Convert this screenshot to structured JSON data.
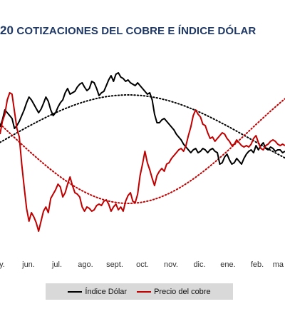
{
  "title_number": "20",
  "title_text": "COTIZACIONES DEL COBRE E ÍNDICE DÓLAR",
  "chart_data": {
    "type": "line",
    "title": "COTIZACIONES DEL COBRE E ÍNDICE DÓLAR",
    "x_tick_labels": [
      "y.",
      "jun.",
      "jul.",
      "ago.",
      "sept.",
      "oct.",
      "nov.",
      "dic.",
      "ene.",
      "feb.",
      "ma"
    ],
    "grid": false,
    "legend_position": "bottom",
    "colors": {
      "dolar": "#000000",
      "cobre": "#c00000"
    },
    "series": [
      {
        "name": "Índice Dólar",
        "color": "#000000",
        "values": [
          0.22,
          0.32,
          0.46,
          0.42,
          0.38,
          0.34,
          0.2,
          0.24,
          0.3,
          0.38,
          0.46,
          0.56,
          0.64,
          0.6,
          0.54,
          0.48,
          0.42,
          0.47,
          0.55,
          0.64,
          0.58,
          0.46,
          0.38,
          0.42,
          0.5,
          0.56,
          0.6,
          0.7,
          0.76,
          0.68,
          0.7,
          0.72,
          0.78,
          0.82,
          0.84,
          0.78,
          0.73,
          0.76,
          0.86,
          0.84,
          0.76,
          0.66,
          0.7,
          0.72,
          0.8,
          0.88,
          0.94,
          0.86,
          0.96,
          0.98,
          0.92,
          0.9,
          0.86,
          0.88,
          0.84,
          0.82,
          0.8,
          0.84,
          0.8,
          0.76,
          0.72,
          0.68,
          0.7,
          0.6,
          0.4,
          0.28,
          0.28,
          0.32,
          0.34,
          0.3,
          0.26,
          0.22,
          0.18,
          0.12,
          0.08,
          0.04,
          -0.02,
          -0.06,
          -0.1,
          -0.14,
          -0.1,
          -0.08,
          -0.14,
          -0.12,
          -0.08,
          -0.1,
          -0.14,
          -0.1,
          -0.08,
          -0.12,
          -0.14,
          -0.3,
          -0.28,
          -0.2,
          -0.16,
          -0.24,
          -0.3,
          -0.28,
          -0.22,
          -0.26,
          -0.3,
          -0.22,
          -0.16,
          -0.12,
          -0.1,
          -0.14,
          -0.04,
          -0.1,
          -0.04,
          0.0,
          -0.08,
          -0.1,
          -0.06,
          -0.08,
          -0.12,
          -0.1,
          -0.1,
          -0.14,
          -0.12
        ]
      },
      {
        "name": "Precio del cobre",
        "color": "#c00000",
        "values": [
          0.12,
          0.3,
          0.4,
          0.6,
          0.7,
          0.68,
          0.44,
          0.2,
          0.08,
          -0.3,
          -0.62,
          -0.92,
          -1.1,
          -0.98,
          -1.04,
          -1.12,
          -1.24,
          -1.1,
          -0.96,
          -0.9,
          -0.98,
          -0.78,
          -0.72,
          -0.66,
          -0.58,
          -0.62,
          -0.76,
          -0.7,
          -0.58,
          -0.48,
          -0.6,
          -0.7,
          -0.72,
          -0.76,
          -0.9,
          -0.96,
          -0.9,
          -0.92,
          -0.96,
          -0.94,
          -0.88,
          -0.86,
          -0.88,
          -0.82,
          -0.8,
          -0.86,
          -0.96,
          -0.9,
          -0.86,
          -0.94,
          -0.9,
          -0.96,
          -0.82,
          -0.74,
          -0.7,
          -0.82,
          -0.84,
          -0.72,
          -0.46,
          -0.3,
          -0.12,
          -0.28,
          -0.38,
          -0.5,
          -0.6,
          -0.46,
          -0.4,
          -0.36,
          -0.4,
          -0.3,
          -0.28,
          -0.22,
          -0.18,
          -0.14,
          -0.1,
          -0.08,
          -0.12,
          -0.04,
          0.1,
          0.22,
          0.38,
          0.46,
          0.4,
          0.36,
          0.26,
          0.24,
          0.14,
          0.06,
          0.08,
          0.02,
          0.06,
          0.1,
          0.14,
          0.12,
          0.06,
          0.02,
          -0.04,
          -0.02,
          0.04,
          0.0,
          -0.04,
          -0.06,
          -0.04,
          -0.06,
          -0.02,
          0.06,
          0.1,
          0.0,
          -0.08,
          -0.1,
          -0.04,
          -0.02,
          0.02,
          0.04,
          0.02,
          -0.02,
          -0.04,
          -0.02,
          -0.04
        ]
      }
    ],
    "trend_lines": [
      {
        "series": "Índice Dólar",
        "style": "dotted",
        "shape": "hump, peaks around sept./oct."
      },
      {
        "series": "Precio del cobre",
        "style": "dotted",
        "shape": "trough, lowest around sept."
      }
    ]
  },
  "legend": [
    {
      "label": "Índice Dólar",
      "color": "#000000"
    },
    {
      "label": "Precio del cobre",
      "color": "#c00000"
    }
  ]
}
